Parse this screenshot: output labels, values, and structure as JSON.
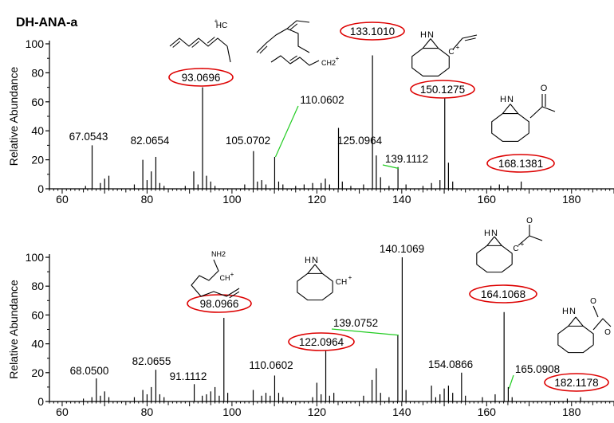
{
  "figure_title": "DH-ANA-a",
  "colors": {
    "peak": "#000000",
    "axis": "#000000",
    "ellipse": "#dd0000",
    "leader": "#22cc22"
  },
  "chart_data": [
    {
      "type": "bar",
      "name": "top",
      "ylabel": "Relative Abundance",
      "xlabel": "",
      "xlim": [
        57,
        190
      ],
      "ylim": [
        0,
        100
      ],
      "xticks": [
        "60",
        "80",
        "100",
        "120",
        "140",
        "160",
        "180"
      ],
      "yticks": [
        "0",
        "20",
        "40",
        "60",
        "80",
        "100"
      ],
      "grid": false,
      "peaks": [
        {
          "x": 65.5,
          "y": 2
        },
        {
          "x": 67.0543,
          "y": 30
        },
        {
          "x": 69.0,
          "y": 4
        },
        {
          "x": 70.0,
          "y": 7
        },
        {
          "x": 71.0,
          "y": 9
        },
        {
          "x": 77.0,
          "y": 3
        },
        {
          "x": 79.0,
          "y": 20
        },
        {
          "x": 80.0,
          "y": 6
        },
        {
          "x": 81.0,
          "y": 12
        },
        {
          "x": 82.0654,
          "y": 22
        },
        {
          "x": 83.0,
          "y": 4
        },
        {
          "x": 84.0,
          "y": 2
        },
        {
          "x": 89.0,
          "y": 2
        },
        {
          "x": 91.0,
          "y": 12
        },
        {
          "x": 92.0,
          "y": 3
        },
        {
          "x": 93.0696,
          "y": 70
        },
        {
          "x": 94.0,
          "y": 9
        },
        {
          "x": 95.0,
          "y": 5
        },
        {
          "x": 96.0,
          "y": 2
        },
        {
          "x": 103.0,
          "y": 3
        },
        {
          "x": 105.0702,
          "y": 26
        },
        {
          "x": 106.0,
          "y": 5
        },
        {
          "x": 107.0,
          "y": 6
        },
        {
          "x": 108.0,
          "y": 3
        },
        {
          "x": 110.0602,
          "y": 22
        },
        {
          "x": 111.0,
          "y": 5
        },
        {
          "x": 112.0,
          "y": 3
        },
        {
          "x": 115.0,
          "y": 2
        },
        {
          "x": 117.0,
          "y": 3
        },
        {
          "x": 119.0,
          "y": 4
        },
        {
          "x": 121.0,
          "y": 4
        },
        {
          "x": 122.0,
          "y": 7
        },
        {
          "x": 123.0,
          "y": 3
        },
        {
          "x": 125.0964,
          "y": 42
        },
        {
          "x": 126.0,
          "y": 5
        },
        {
          "x": 128.0,
          "y": 2
        },
        {
          "x": 131.0,
          "y": 3
        },
        {
          "x": 133.101,
          "y": 92
        },
        {
          "x": 134.0,
          "y": 23
        },
        {
          "x": 135.0,
          "y": 8
        },
        {
          "x": 137.0,
          "y": 2
        },
        {
          "x": 139.1112,
          "y": 15
        },
        {
          "x": 141.0,
          "y": 3
        },
        {
          "x": 145.0,
          "y": 2
        },
        {
          "x": 147.0,
          "y": 4
        },
        {
          "x": 149.0,
          "y": 6
        },
        {
          "x": 150.1275,
          "y": 70
        },
        {
          "x": 151.0,
          "y": 18
        },
        {
          "x": 152.0,
          "y": 5
        },
        {
          "x": 161.0,
          "y": 2
        },
        {
          "x": 163.0,
          "y": 3
        },
        {
          "x": 165.0,
          "y": 2
        },
        {
          "x": 168.1381,
          "y": 5
        }
      ],
      "peak_labels": [
        {
          "text": "67.0543",
          "x": 67.0543,
          "circled": false,
          "leader": false
        },
        {
          "text": "82.0654",
          "x": 82.0654,
          "circled": false,
          "leader": false
        },
        {
          "text": "93.0696",
          "x": 93.0696,
          "circled": true,
          "leader": false
        },
        {
          "text": "105.0702",
          "x": 105.0702,
          "circled": false,
          "leader": false
        },
        {
          "text": "110.0602",
          "x": 110.0602,
          "circled": false,
          "leader": true
        },
        {
          "text": "125.0964",
          "x": 125.0964,
          "circled": false,
          "leader": false
        },
        {
          "text": "133.1010",
          "x": 133.101,
          "circled": true,
          "leader": false
        },
        {
          "text": "139.1112",
          "x": 139.1112,
          "circled": false,
          "leader": true
        },
        {
          "text": "150.1275",
          "x": 150.1275,
          "circled": true,
          "leader": false
        },
        {
          "text": "168.1381",
          "x": 168.1381,
          "circled": true,
          "leader": false
        }
      ],
      "structure_labels": [
        "HC",
        "+",
        "CH2",
        "+",
        "N",
        "H",
        "C",
        "+",
        "N",
        "H",
        "O"
      ]
    },
    {
      "type": "bar",
      "name": "bottom",
      "ylabel": "Relative Abundance",
      "xlabel": "",
      "xlim": [
        57,
        190
      ],
      "ylim": [
        0,
        100
      ],
      "xticks": [
        "60",
        "80",
        "100",
        "120",
        "140",
        "160",
        "180"
      ],
      "yticks": [
        "0",
        "20",
        "40",
        "60",
        "80",
        "100"
      ],
      "grid": false,
      "peaks": [
        {
          "x": 65.0,
          "y": 2
        },
        {
          "x": 67.0,
          "y": 3
        },
        {
          "x": 68.05,
          "y": 16
        },
        {
          "x": 69.0,
          "y": 4
        },
        {
          "x": 70.0,
          "y": 7
        },
        {
          "x": 71.0,
          "y": 3
        },
        {
          "x": 77.0,
          "y": 3
        },
        {
          "x": 79.0,
          "y": 8
        },
        {
          "x": 80.0,
          "y": 5
        },
        {
          "x": 81.0,
          "y": 10
        },
        {
          "x": 82.0655,
          "y": 22
        },
        {
          "x": 83.0,
          "y": 5
        },
        {
          "x": 84.0,
          "y": 3
        },
        {
          "x": 91.1112,
          "y": 12
        },
        {
          "x": 93.0,
          "y": 4
        },
        {
          "x": 94.0,
          "y": 5
        },
        {
          "x": 95.0,
          "y": 7
        },
        {
          "x": 96.0,
          "y": 10
        },
        {
          "x": 97.0,
          "y": 4
        },
        {
          "x": 98.0966,
          "y": 58
        },
        {
          "x": 99.0,
          "y": 6
        },
        {
          "x": 105.0,
          "y": 8
        },
        {
          "x": 107.0,
          "y": 4
        },
        {
          "x": 108.0,
          "y": 6
        },
        {
          "x": 109.0,
          "y": 4
        },
        {
          "x": 110.0602,
          "y": 18
        },
        {
          "x": 111.0,
          "y": 6
        },
        {
          "x": 112.0,
          "y": 3
        },
        {
          "x": 119.0,
          "y": 3
        },
        {
          "x": 120.0,
          "y": 13
        },
        {
          "x": 121.0,
          "y": 5
        },
        {
          "x": 122.0964,
          "y": 35
        },
        {
          "x": 123.0,
          "y": 4
        },
        {
          "x": 124.0,
          "y": 6
        },
        {
          "x": 131.0,
          "y": 4
        },
        {
          "x": 133.0,
          "y": 15
        },
        {
          "x": 134.0,
          "y": 23
        },
        {
          "x": 135.0,
          "y": 6
        },
        {
          "x": 137.0,
          "y": 3
        },
        {
          "x": 139.0752,
          "y": 46
        },
        {
          "x": 140.1069,
          "y": 100
        },
        {
          "x": 141.0,
          "y": 8
        },
        {
          "x": 147.0,
          "y": 11
        },
        {
          "x": 148.0,
          "y": 3
        },
        {
          "x": 149.0,
          "y": 5
        },
        {
          "x": 150.0,
          "y": 9
        },
        {
          "x": 151.0,
          "y": 11
        },
        {
          "x": 152.0,
          "y": 6
        },
        {
          "x": 154.0866,
          "y": 20
        },
        {
          "x": 155.0,
          "y": 4
        },
        {
          "x": 159.0,
          "y": 3
        },
        {
          "x": 162.0,
          "y": 5
        },
        {
          "x": 164.1068,
          "y": 62
        },
        {
          "x": 165.0908,
          "y": 10
        },
        {
          "x": 166.0,
          "y": 3
        },
        {
          "x": 179.0,
          "y": 2
        },
        {
          "x": 182.1178,
          "y": 3
        }
      ],
      "peak_labels": [
        {
          "text": "68.0500",
          "x": 68.05,
          "circled": false,
          "leader": false
        },
        {
          "text": "82.0655",
          "x": 82.0655,
          "circled": false,
          "leader": false
        },
        {
          "text": "91.1112",
          "x": 91.1112,
          "circled": false,
          "leader": false
        },
        {
          "text": "98.0966",
          "x": 98.0966,
          "circled": true,
          "leader": false
        },
        {
          "text": "110.0602",
          "x": 110.0602,
          "circled": false,
          "leader": false
        },
        {
          "text": "122.0964",
          "x": 122.0964,
          "circled": true,
          "leader": false
        },
        {
          "text": "139.0752",
          "x": 139.0752,
          "circled": false,
          "leader": true
        },
        {
          "text": "140.1069",
          "x": 140.1069,
          "circled": false,
          "leader": false
        },
        {
          "text": "154.0866",
          "x": 154.0866,
          "circled": false,
          "leader": false
        },
        {
          "text": "164.1068",
          "x": 164.1068,
          "circled": true,
          "leader": false
        },
        {
          "text": "165.0908",
          "x": 165.0908,
          "circled": false,
          "leader": true
        },
        {
          "text": "182.1178",
          "x": 182.1178,
          "circled": true,
          "leader": false
        }
      ],
      "structure_labels": [
        "NH2",
        "CH",
        "+",
        "N",
        "H",
        "CH",
        "+",
        "N",
        "H",
        "C",
        "+",
        "O",
        "N",
        "H",
        "O",
        "O"
      ]
    }
  ]
}
